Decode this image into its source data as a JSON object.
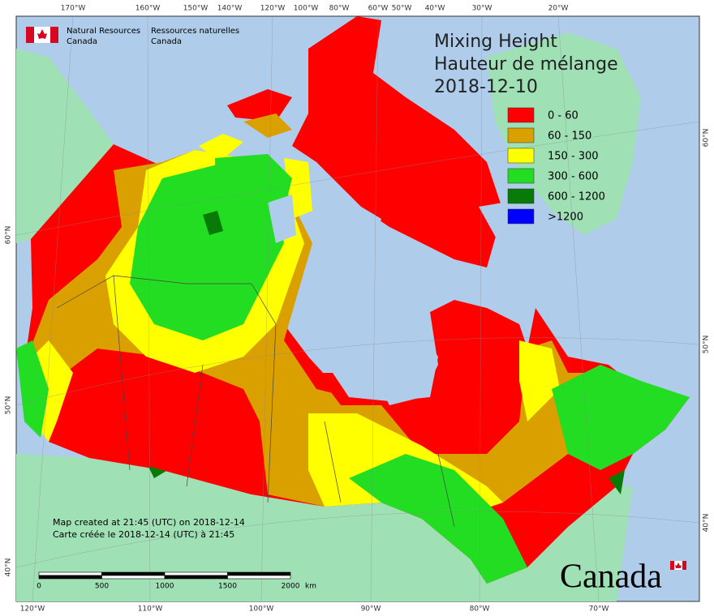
{
  "header": {
    "agency_en": [
      "Natural Resources",
      "Canada"
    ],
    "agency_fr": [
      "Ressources naturelles",
      "Canada"
    ]
  },
  "title": {
    "en": "Mixing Height",
    "fr": "Hauteur de mélange",
    "date": "2018-12-10"
  },
  "legend": [
    {
      "label": "0 - 60",
      "color": "#ff0000"
    },
    {
      "label": "60 - 150",
      "color": "#d9a000"
    },
    {
      "label": "150 - 300",
      "color": "#ffff00"
    },
    {
      "label": "300 - 600",
      "color": "#22dd22"
    },
    {
      "label": "600 - 1200",
      "color": "#087a08"
    },
    {
      "label": ">1200",
      "color": "#0000ff"
    }
  ],
  "graticule": {
    "top": [
      "170°W",
      "160°W",
      "150°W",
      "140°W",
      "120°W",
      "100°W",
      "80°W",
      "60°W",
      "50°W",
      "40°W",
      "30°W",
      "20°W"
    ],
    "bottom": [
      "120°W",
      "110°W",
      "100°W",
      "90°W",
      "80°W",
      "70°W"
    ],
    "left": [
      "60°N",
      "50°N",
      "40°N"
    ],
    "right": [
      "60°N",
      "50°N",
      "40°N"
    ]
  },
  "scale": {
    "labels": [
      "0",
      "500",
      "1000",
      "1500",
      "2000"
    ],
    "unit": "km"
  },
  "notes": [
    "Map created at 21:45 (UTC) on 2018-12-14",
    "Carte créée le 2018-12-14 (UTC) à 21:45"
  ],
  "wordmark": "Canada"
}
